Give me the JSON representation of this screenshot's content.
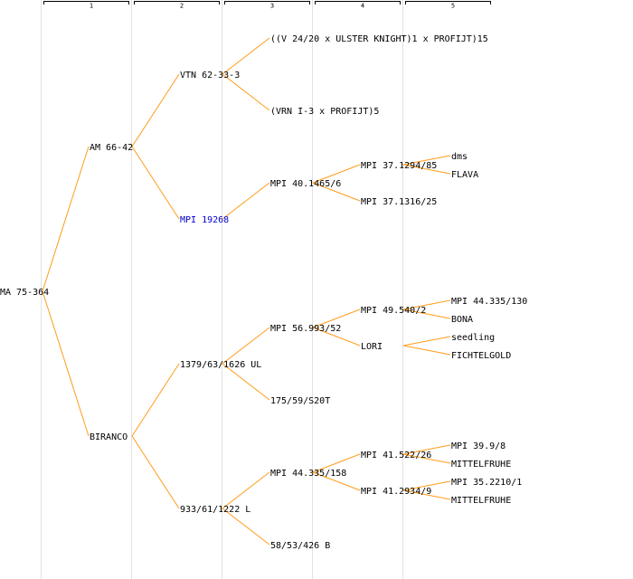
{
  "columns": [
    {
      "label": "1"
    },
    {
      "label": "2"
    },
    {
      "label": "3"
    },
    {
      "label": "4"
    },
    {
      "label": "5"
    }
  ],
  "colors": {
    "edge": "#ff9c1a",
    "text": "#000000",
    "link": "#0000cc",
    "column_divider": "#e2e2e2"
  },
  "nodes": {
    "n0": {
      "label": "MA 75-364",
      "link": false
    },
    "n1a": {
      "label": "AM 66-42",
      "link": false
    },
    "n1b": {
      "label": "BIRANCO",
      "link": false
    },
    "n2a": {
      "label": "VTN 62-33-3",
      "link": false
    },
    "n2b": {
      "label": "MPI 19268",
      "link": true
    },
    "n2c": {
      "label": "1379/63/1626 UL",
      "link": false
    },
    "n2d": {
      "label": "933/61/1222 L",
      "link": false
    },
    "n3a": {
      "label": "((V 24/20 x ULSTER KNIGHT)1 x PROFIJT)15",
      "link": false
    },
    "n3b": {
      "label": "(VRN I-3 x PROFIJT)5",
      "link": false
    },
    "n3c": {
      "label": "MPI 40.1465/6",
      "link": false
    },
    "n3d": {
      "label": "MPI 56.993/52",
      "link": false
    },
    "n3e": {
      "label": "175/59/S20T",
      "link": false
    },
    "n3f": {
      "label": "MPI 44.335/158",
      "link": false
    },
    "n3g": {
      "label": "58/53/426 B",
      "link": false
    },
    "n4a": {
      "label": "MPI 37.1294/85",
      "link": false
    },
    "n4b": {
      "label": "MPI 37.1316/25",
      "link": false
    },
    "n4c": {
      "label": "MPI 49.540/2",
      "link": false
    },
    "n4d": {
      "label": "LORI",
      "link": false
    },
    "n4e": {
      "label": "MPI 41.522/26",
      "link": false
    },
    "n4f": {
      "label": "MPI 41.2934/9",
      "link": false
    },
    "n5a": {
      "label": "dms",
      "link": false
    },
    "n5b": {
      "label": "FLAVA",
      "link": false
    },
    "n5c": {
      "label": "MPI 44.335/130",
      "link": false
    },
    "n5d": {
      "label": "BONA",
      "link": false
    },
    "n5e": {
      "label": "seedling",
      "link": false
    },
    "n5f": {
      "label": "FICHTELGOLD",
      "link": false
    },
    "n5g": {
      "label": "MPI 39.9/8",
      "link": false
    },
    "n5h": {
      "label": "MITTELFRUHE",
      "link": false
    },
    "n5i": {
      "label": "MPI 35.2210/1",
      "link": false
    },
    "n5j": {
      "label": "MITTELFRUHE",
      "link": false
    }
  },
  "edges": [
    [
      "n0",
      "n1a"
    ],
    [
      "n0",
      "n1b"
    ],
    [
      "n1a",
      "n2a"
    ],
    [
      "n1a",
      "n2b"
    ],
    [
      "n1b",
      "n2c"
    ],
    [
      "n1b",
      "n2d"
    ],
    [
      "n2a",
      "n3a"
    ],
    [
      "n2a",
      "n3b"
    ],
    [
      "n2b",
      "n3c"
    ],
    [
      "n2c",
      "n3d"
    ],
    [
      "n2c",
      "n3e"
    ],
    [
      "n2d",
      "n3f"
    ],
    [
      "n2d",
      "n3g"
    ],
    [
      "n3c",
      "n4a"
    ],
    [
      "n3c",
      "n4b"
    ],
    [
      "n3d",
      "n4c"
    ],
    [
      "n3d",
      "n4d"
    ],
    [
      "n3f",
      "n4e"
    ],
    [
      "n3f",
      "n4f"
    ],
    [
      "n4a",
      "n5a"
    ],
    [
      "n4a",
      "n5b"
    ],
    [
      "n4c",
      "n5c"
    ],
    [
      "n4c",
      "n5d"
    ],
    [
      "n4d",
      "n5e"
    ],
    [
      "n4d",
      "n5f"
    ],
    [
      "n4e",
      "n5g"
    ],
    [
      "n4e",
      "n5h"
    ],
    [
      "n4f",
      "n5i"
    ],
    [
      "n4f",
      "n5j"
    ]
  ]
}
